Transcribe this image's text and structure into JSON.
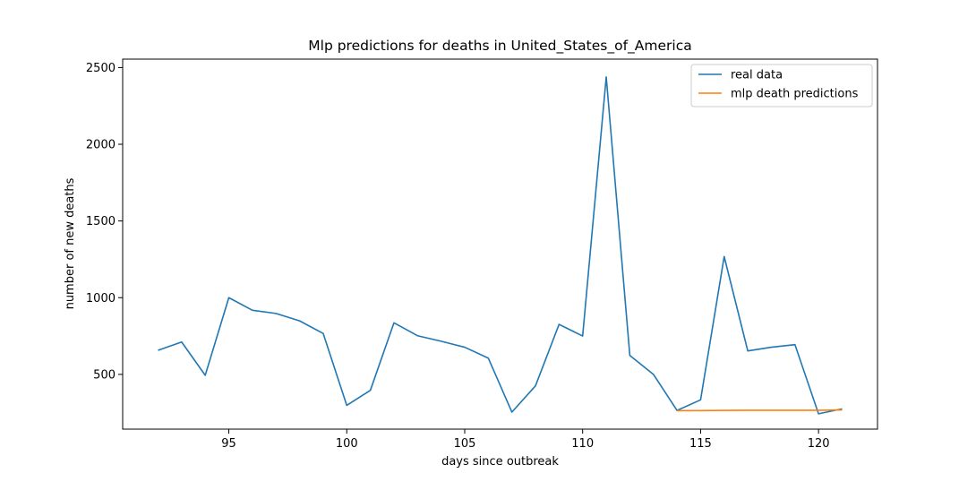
{
  "chart_data": {
    "type": "line",
    "title": "Mlp predictions for deaths in  United_States_of_America",
    "xlabel": "days since outbreak",
    "ylabel": "number of new deaths",
    "xlim": [
      90.5,
      122.5
    ],
    "ylim": [
      143,
      2555
    ],
    "xticks": [
      95,
      100,
      105,
      110,
      115,
      120
    ],
    "yticks": [
      500,
      1000,
      1500,
      2000,
      2500
    ],
    "grid": false,
    "legend_position": "top-right",
    "series": [
      {
        "name": "real data",
        "color": "#1f77b4",
        "x": [
          92,
          93,
          94,
          95,
          96,
          97,
          98,
          99,
          100,
          101,
          102,
          103,
          104,
          105,
          106,
          107,
          108,
          109,
          110,
          111,
          112,
          113,
          114,
          115,
          116,
          117,
          118,
          119,
          120,
          121
        ],
        "y": [
          657,
          711,
          494,
          1000,
          918,
          897,
          849,
          767,
          298,
          396,
          836,
          752,
          716,
          677,
          606,
          254,
          425,
          826,
          750,
          2439,
          623,
          500,
          265,
          334,
          1268,
          653,
          677,
          694,
          243,
          275
        ]
      },
      {
        "name": "mlp death predictions",
        "color": "#ff7f0e",
        "x": [
          114,
          115,
          116,
          117,
          118,
          119,
          120,
          121
        ],
        "y": [
          264,
          264,
          265,
          266,
          266,
          266,
          266,
          268
        ]
      }
    ]
  }
}
